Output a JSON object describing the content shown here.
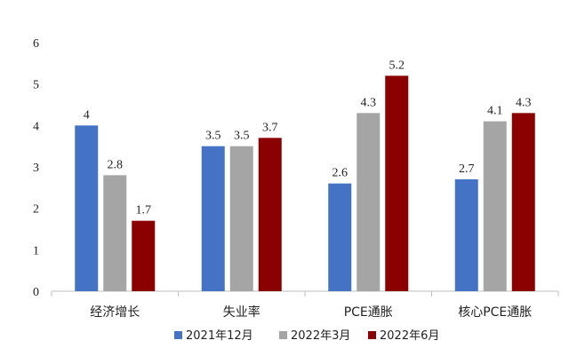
{
  "chart_data": {
    "type": "bar",
    "title": "",
    "xlabel": "",
    "ylabel": "",
    "ylim": [
      0,
      6
    ],
    "yticks": [
      0,
      1,
      2,
      3,
      4,
      5,
      6
    ],
    "grid": false,
    "legend_position": "bottom",
    "categories": [
      "经济增长",
      "失业率",
      "PCE通胀",
      "核心PCE通胀"
    ],
    "series": [
      {
        "name": "2021年12月",
        "color": "#4472C4",
        "values": [
          4,
          3.5,
          2.6,
          2.7
        ]
      },
      {
        "name": "2022年3月",
        "color": "#A5A5A5",
        "values": [
          2.8,
          3.5,
          4.3,
          4.1
        ]
      },
      {
        "name": "2022年6月",
        "color": "#8B0000",
        "values": [
          1.7,
          3.7,
          5.2,
          4.3
        ]
      }
    ]
  }
}
